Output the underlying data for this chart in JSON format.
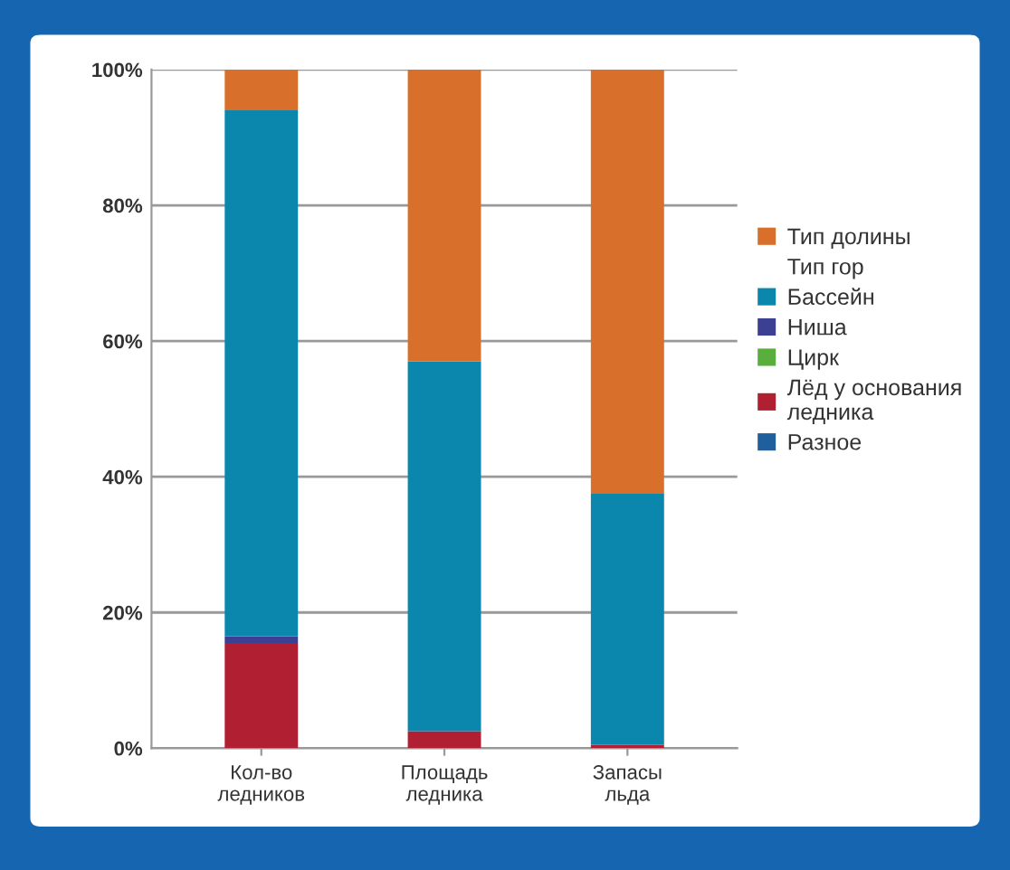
{
  "chart_data": {
    "type": "bar",
    "stacked": true,
    "categories": [
      "Кол-во\nледников",
      "Площадь\nледника",
      "Запасы\nльда"
    ],
    "series": [
      {
        "name": "Разное",
        "color": "#1f5f9e",
        "values": [
          0,
          0,
          0
        ]
      },
      {
        "name": "Лёд у основания\nледника",
        "color": "#b01f32",
        "values": [
          15.5,
          2.5,
          0.5
        ]
      },
      {
        "name": "Цирк",
        "color": "#5aae3c",
        "values": [
          0,
          0,
          0
        ]
      },
      {
        "name": "Ниша",
        "color": "#3d3f92",
        "values": [
          1,
          0,
          0
        ]
      },
      {
        "name": "Бассейн",
        "color": "#0b86ad",
        "values": [
          77.5,
          54.5,
          37
        ]
      },
      {
        "name": "Тип долины",
        "color": "#d8702c",
        "values": [
          6,
          43,
          62.5
        ]
      }
    ],
    "annotations": [
      "Тип гор"
    ],
    "ylim": [
      0,
      100
    ],
    "yticks": [
      {
        "value": 0,
        "label": "0%"
      },
      {
        "value": 20,
        "label": "20%"
      },
      {
        "value": 40,
        "label": "40%"
      },
      {
        "value": 60,
        "label": "60%"
      },
      {
        "value": 80,
        "label": "80%"
      },
      {
        "value": 100,
        "label": "100%"
      }
    ],
    "grid": "y",
    "legend": "right"
  }
}
